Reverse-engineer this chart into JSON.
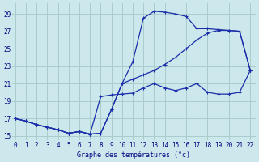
{
  "xlabel": "Graphe des températures (°c)",
  "background_color": "#cce8ec",
  "grid_color": "#aacccc",
  "line_color": "#1a2eaa",
  "xlim": [
    -0.3,
    22.5
  ],
  "ylim": [
    14.5,
    30.2
  ],
  "xticks": [
    0,
    1,
    2,
    3,
    4,
    5,
    6,
    7,
    8,
    9,
    10,
    11,
    12,
    13,
    14,
    15,
    16,
    17,
    18,
    19,
    20,
    21,
    22
  ],
  "yticks": [
    15,
    17,
    19,
    21,
    23,
    25,
    27,
    29
  ],
  "line1_x": [
    0,
    1,
    2,
    3,
    4,
    5,
    6,
    7,
    8,
    9,
    10,
    11,
    12,
    13,
    14,
    15,
    16,
    17,
    18,
    19,
    20,
    21,
    22
  ],
  "line1_y": [
    17.0,
    16.7,
    16.3,
    16.0,
    15.7,
    15.3,
    15.5,
    15.2,
    15.3,
    18.0,
    21.0,
    23.5,
    28.5,
    29.3,
    29.2,
    29.0,
    28.7,
    27.3,
    27.3,
    27.2,
    27.1,
    27.0,
    22.5
  ],
  "line2_x": [
    0,
    1,
    2,
    3,
    4,
    5,
    6,
    7,
    8,
    9,
    10,
    11,
    12,
    13,
    14,
    15,
    16,
    17,
    18,
    19,
    20,
    21,
    22
  ],
  "line2_y": [
    17.0,
    16.7,
    16.3,
    16.0,
    15.7,
    15.3,
    15.5,
    15.2,
    15.3,
    18.0,
    21.0,
    21.5,
    22.0,
    22.5,
    23.2,
    24.0,
    25.0,
    26.0,
    26.8,
    27.1,
    27.1,
    27.0,
    22.5
  ],
  "line3_x": [
    0,
    1,
    2,
    3,
    4,
    5,
    6,
    7,
    8,
    9,
    10,
    11,
    12,
    13,
    14,
    15,
    16,
    17,
    18,
    19,
    20,
    21,
    22
  ],
  "line3_y": [
    17.0,
    16.7,
    16.3,
    16.0,
    15.7,
    15.3,
    15.5,
    15.2,
    19.5,
    19.7,
    19.8,
    19.9,
    20.5,
    21.0,
    20.5,
    20.2,
    20.5,
    21.0,
    20.0,
    19.8,
    19.8,
    20.0,
    22.5
  ],
  "marker": "+",
  "markersize": 3,
  "linewidth": 0.9,
  "xlabel_fontsize": 6,
  "tick_fontsize": 5.5
}
